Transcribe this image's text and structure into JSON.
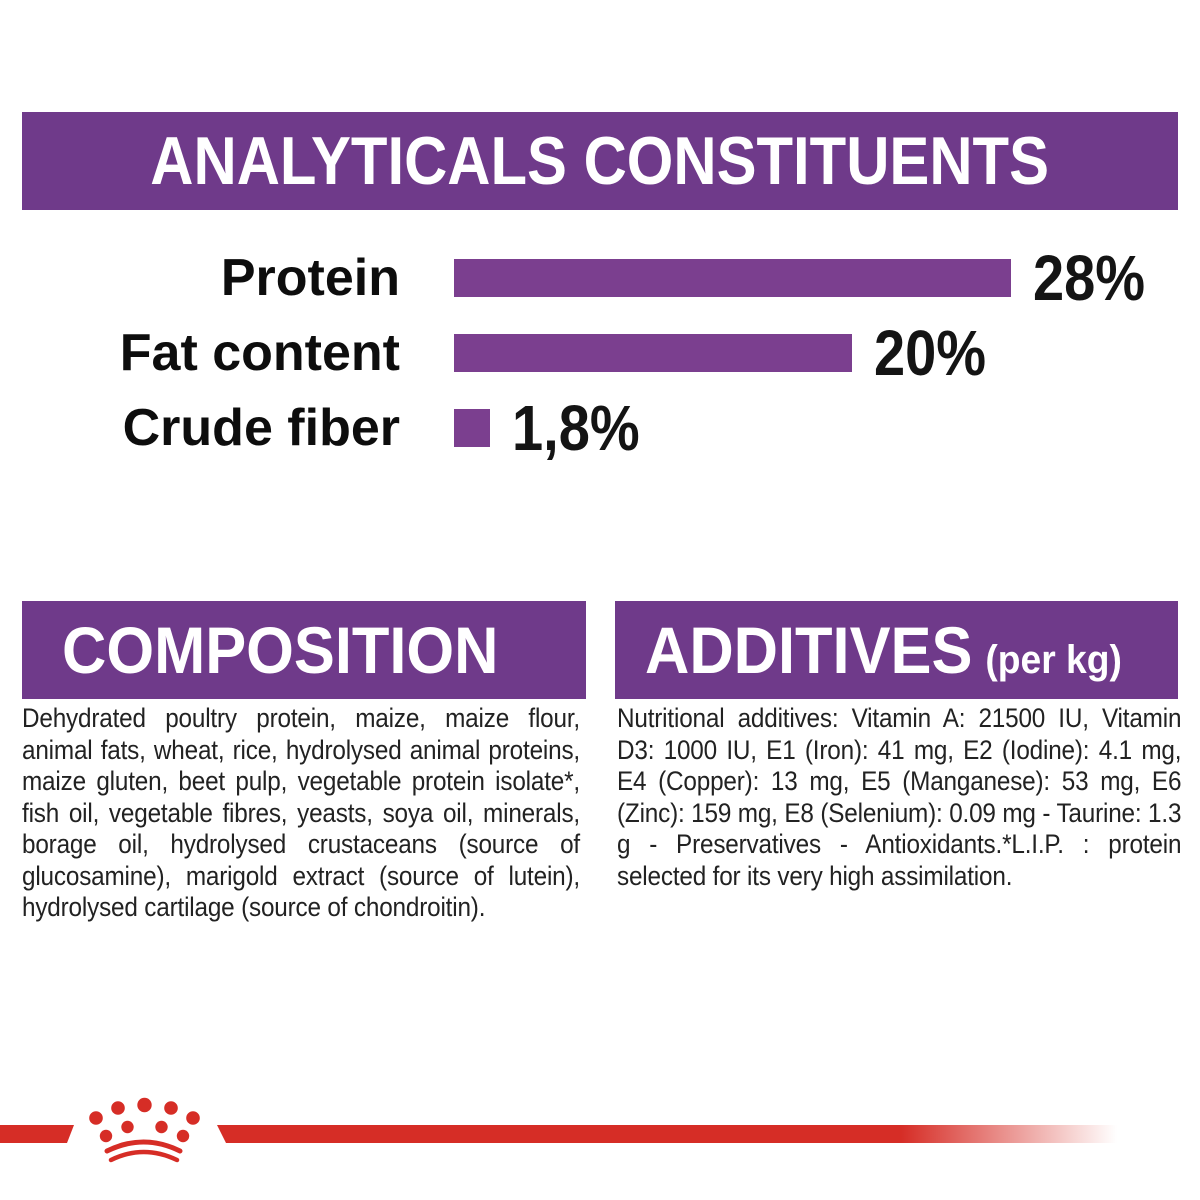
{
  "colors": {
    "banner_purple": "#6f3a8a",
    "bar_purple": "#7b3f8f",
    "brand_red": "#d62d26",
    "text_black": "#141414"
  },
  "analyticals": {
    "title": "ANALYTICALS CONSTITUENTS"
  },
  "chart_data": {
    "type": "bar",
    "orientation": "horizontal",
    "title": "ANALYTICALS CONSTITUENTS",
    "categories": [
      "Protein",
      "Fat content",
      "Crude fiber"
    ],
    "values": [
      28,
      20,
      1.8
    ],
    "value_labels": [
      "28%",
      "20%",
      "1,8%"
    ],
    "unit": "%",
    "xlim": [
      0,
      30
    ],
    "grid": false,
    "legend": false,
    "bar_color": "#7b3f8f"
  },
  "composition": {
    "title": "COMPOSITION",
    "body": "Dehydrated poultry protein, maize, maize flour, animal fats, wheat, rice, hydrolysed animal proteins, maize gluten, beet pulp, vegetable protein isolate*, fish oil, vegetable fibres, yeasts, soya oil, minerals, borage oil, hydrolysed crustaceans (source of glucosamine), marigold extract (source of lutein), hydrolysed cartilage (source of chondroitin)."
  },
  "additives": {
    "title": "ADDITIVES",
    "title_suffix": "(per kg)",
    "body": "Nutritional additives: Vitamin A: 21500 IU, Vitamin D3: 1000 IU, E1 (Iron): 41 mg, E2 (Iodine): 4.1 mg, E4 (Copper): 13 mg, E5 (Manganese): 53 mg, E6 (Zinc): 159 mg, E8 (Selenium): 0.09 mg - Taurine: 1.3 g - Preservatives - Antioxidants.*L.I.P. : protein selected for its very high assimilation."
  },
  "footer": {
    "logo": "royal-canin-crown"
  }
}
